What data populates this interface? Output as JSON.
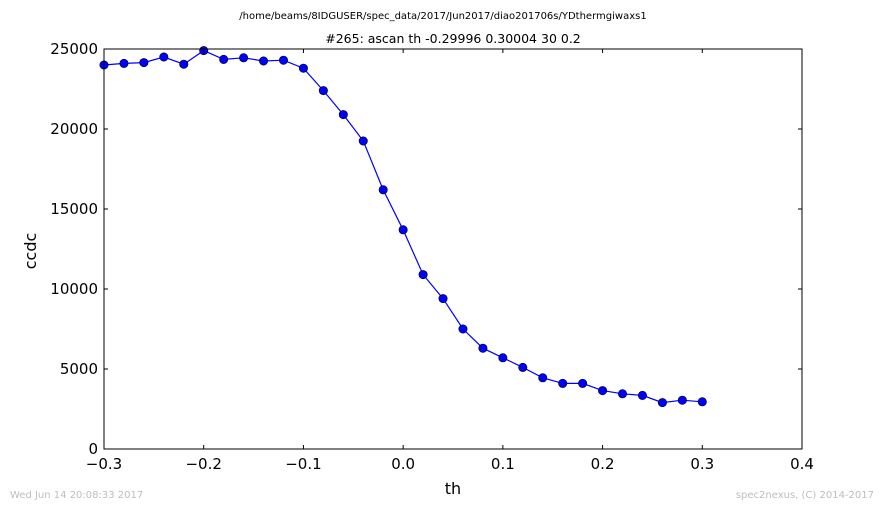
{
  "header": {
    "path": "/home/beams/8IDGUSER/spec_data/2017/Jun2017/diao201706s/YDthermgiwaxs1"
  },
  "footer": {
    "timestamp": "Wed Jun 14 20:08:33 2017",
    "credit": "spec2nexus, (C) 2014-2017"
  },
  "chart_data": {
    "type": "line",
    "title": "#265: ascan  th -0.29996 0.30004  30 0.2",
    "xlabel": "th",
    "ylabel": "ccdc",
    "xlim": [
      -0.3,
      0.4
    ],
    "ylim": [
      0,
      25000
    ],
    "xticks": [
      "−0.3",
      "−0.2",
      "−0.1",
      "0.0",
      "0.1",
      "0.2",
      "0.3",
      "0.4"
    ],
    "xtick_values": [
      -0.3,
      -0.2,
      -0.1,
      0.0,
      0.1,
      0.2,
      0.3,
      0.4
    ],
    "yticks": [
      "0",
      "5000",
      "10000",
      "15000",
      "20000",
      "25000"
    ],
    "ytick_values": [
      0,
      5000,
      10000,
      15000,
      20000,
      25000
    ],
    "grid": false,
    "line_color": "#0000ff",
    "marker": "circle",
    "series": [
      {
        "x": [
          -0.3,
          -0.28,
          -0.26,
          -0.24,
          -0.22,
          -0.2,
          -0.18,
          -0.16,
          -0.14,
          -0.12,
          -0.1,
          -0.08,
          -0.06,
          -0.04,
          -0.02,
          0.0,
          0.02,
          0.04,
          0.06,
          0.08,
          0.1,
          0.12,
          0.14,
          0.16,
          0.18,
          0.2,
          0.22,
          0.24,
          0.26,
          0.28,
          0.3
        ],
        "y": [
          24000,
          24100,
          24150,
          24500,
          24050,
          24900,
          24350,
          24450,
          24250,
          24300,
          23800,
          22400,
          20900,
          19250,
          16200,
          13700,
          10900,
          9400,
          7500,
          6300,
          5700,
          5100,
          4450,
          4100,
          4100,
          3650,
          3450,
          3350,
          2900,
          3050,
          2950
        ]
      }
    ]
  }
}
